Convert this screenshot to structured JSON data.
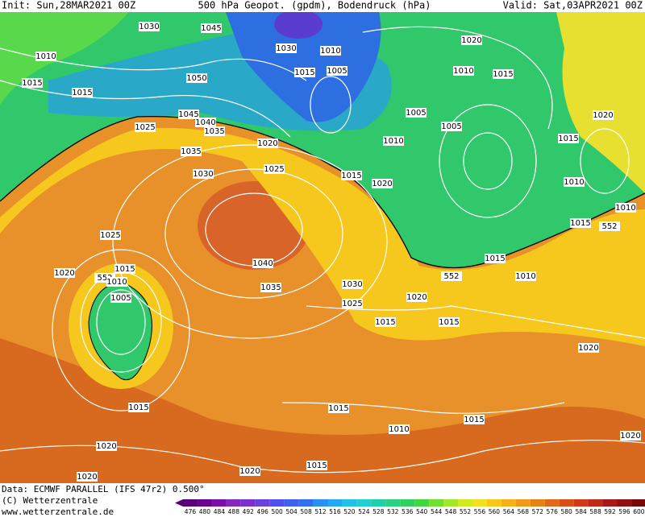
{
  "header": {
    "init": "Init: Sun,28MAR2021 00Z",
    "title": "500 hPa Geopot. (gpdm), Bodendruck (hPa)",
    "valid": "Valid: Sat,03APR2021 00Z"
  },
  "isobar_labels": [
    1030,
    1045,
    1010,
    1015,
    1050,
    1015,
    1030,
    1010,
    1015,
    1005,
    1020,
    1010,
    1015,
    1025,
    1045,
    1040,
    1035,
    1020,
    1005,
    1005,
    1010,
    1020,
    1015,
    1035,
    1030,
    1025,
    1015,
    1020,
    1010,
    1015,
    552,
    1010,
    1025,
    1040,
    1015,
    1010,
    1020,
    1015,
    552,
    1010,
    552,
    1030,
    1035,
    1005,
    1020,
    1025,
    1015,
    1015,
    1020,
    1015,
    1015,
    1015,
    1010,
    1020,
    1020,
    1020,
    1015,
    1020
  ],
  "footer": {
    "data": "Data: ECMWF PARALLEL (IFS 47r2) 0.500°",
    "copyright": "(C) Wetterzentrale",
    "url": "www.wetterzentrale.de"
  },
  "colorbar": {
    "ticks": [
      476,
      480,
      484,
      488,
      492,
      496,
      500,
      504,
      508,
      512,
      516,
      520,
      524,
      528,
      532,
      536,
      540,
      544,
      548,
      552,
      556,
      560,
      564,
      568,
      572,
      576,
      580,
      584,
      588,
      592,
      596,
      600
    ]
  }
}
